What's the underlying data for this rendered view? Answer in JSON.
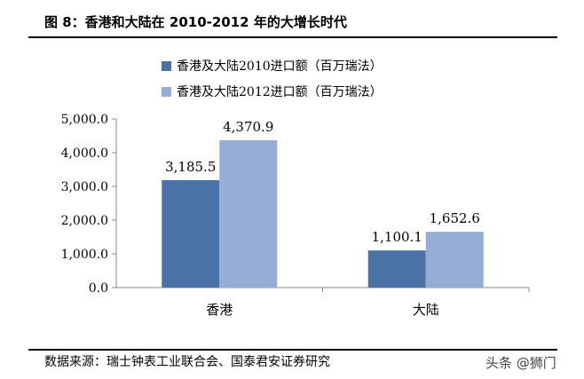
{
  "header": {
    "title": "图 8：香港和大陆在 2010-2012 年的大增长时代"
  },
  "chart_data": {
    "type": "bar",
    "categories": [
      "香港",
      "大陆"
    ],
    "series": [
      {
        "name": "香港及大陆2010进口额（百万瑞法）",
        "values": [
          3185.5,
          1100.1
        ],
        "value_labels": [
          "3,185.5",
          "1,100.1"
        ],
        "color": "#4a72a6"
      },
      {
        "name": "香港及大陆2012进口额（百万瑞法）",
        "values": [
          4370.9,
          1652.6
        ],
        "value_labels": [
          "4,370.9",
          "1,652.6"
        ],
        "color": "#96aed6"
      }
    ],
    "ylim": [
      0,
      5000
    ],
    "yticks": [
      0,
      1000,
      2000,
      3000,
      4000,
      5000
    ],
    "ytick_labels": [
      "0.0",
      "1,000.0",
      "2,000.0",
      "3,000.0",
      "4,000.0",
      "5,000.0"
    ],
    "grid": false,
    "legend_position": "top-center",
    "title": "",
    "xlabel": "",
    "ylabel": ""
  },
  "footer": {
    "source": "数据来源：瑞士钟表工业联合会、国泰君安证券研究",
    "watermark": "头条 @狮门"
  }
}
